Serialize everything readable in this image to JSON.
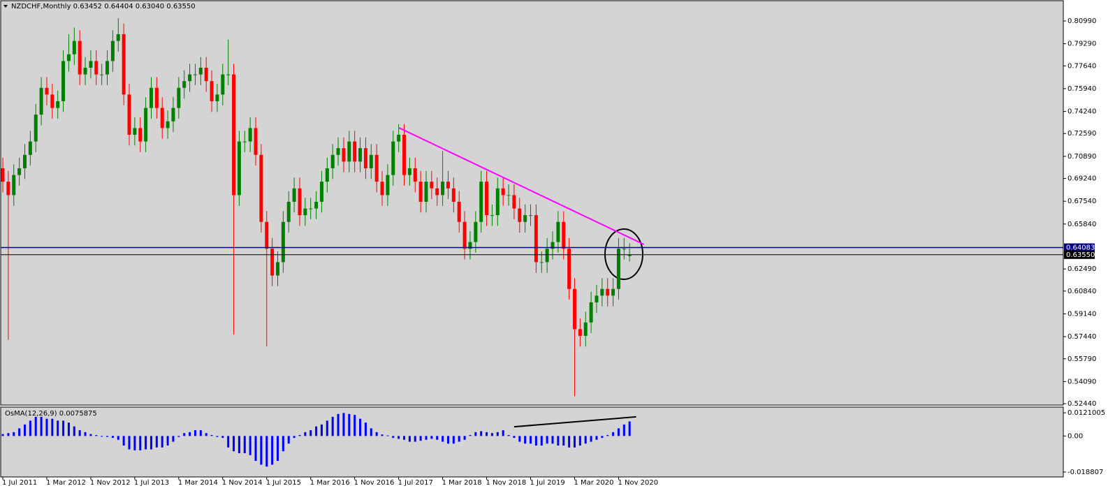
{
  "chart_data": [
    {
      "type": "candlestick",
      "title": "NZDCHF,Monthly  0.63452 0.64404 0.63040 0.63550",
      "categories": [
        "1 Jul 2011",
        null,
        null,
        null,
        null,
        null,
        null,
        null,
        "1 Mar 2012",
        null,
        null,
        null,
        null,
        null,
        null,
        null,
        "1 Nov 2012",
        null,
        null,
        null,
        null,
        null,
        null,
        null,
        "1 Jul 2013",
        null,
        null,
        null,
        null,
        null,
        null,
        null,
        "1 Mar 2014",
        null,
        null,
        null,
        null,
        null,
        null,
        null,
        "1 Nov 2014",
        null,
        null,
        null,
        null,
        null,
        null,
        null,
        "1 Jul 2015",
        null,
        null,
        null,
        null,
        null,
        null,
        null,
        "1 Mar 2016",
        null,
        null,
        null,
        null,
        null,
        null,
        null,
        "1 Nov 2016",
        null,
        null,
        null,
        null,
        null,
        null,
        null,
        "1 Jul 2017",
        null,
        null,
        null,
        null,
        null,
        null,
        null,
        "1 Mar 2018",
        null,
        null,
        null,
        null,
        null,
        null,
        null,
        "1 Nov 2018",
        null,
        null,
        null,
        null,
        null,
        null,
        null,
        "1 Jul 2019",
        null,
        null,
        null,
        null,
        null,
        null,
        null,
        "1 Mar 2020",
        null,
        null,
        null,
        null,
        null,
        null,
        null,
        "1 Nov 2020",
        null,
        null
      ],
      "open": [
        0.7,
        0.69,
        0.68,
        0.695,
        0.7,
        0.71,
        0.72,
        0.74,
        0.76,
        0.755,
        0.745,
        0.75,
        0.78,
        0.785,
        0.795,
        0.77,
        0.775,
        0.78,
        0.77,
        0.77,
        0.78,
        0.795,
        0.8,
        0.755,
        0.725,
        0.73,
        0.72,
        0.745,
        0.76,
        0.745,
        0.73,
        0.735,
        0.745,
        0.76,
        0.765,
        0.77,
        0.77,
        0.775,
        0.765,
        0.75,
        0.755,
        0.77,
        0.77,
        0.68,
        0.72,
        0.72,
        0.73,
        0.71,
        0.66,
        0.64,
        0.62,
        0.63,
        0.66,
        0.675,
        0.685,
        0.665,
        0.67,
        0.67,
        0.675,
        0.69,
        0.7,
        0.71,
        0.715,
        0.705,
        0.72,
        0.705,
        0.715,
        0.7,
        0.71,
        0.69,
        0.68,
        0.695,
        0.72,
        0.725,
        0.695,
        0.7,
        0.69,
        0.675,
        0.69,
        0.685,
        0.68,
        0.69,
        0.685,
        0.675,
        0.66,
        0.64,
        0.645,
        0.66,
        0.69,
        0.665,
        0.665,
        0.685,
        0.68,
        0.68,
        0.67,
        0.66,
        0.665,
        0.665,
        0.63,
        0.63,
        0.64,
        0.645,
        0.66,
        0.64,
        0.61,
        0.58,
        0.575,
        0.585,
        0.6,
        0.605,
        0.61,
        0.605,
        0.61,
        0.64,
        0.63452
      ],
      "high": [
        0.708,
        0.698,
        0.703,
        0.708,
        0.718,
        0.728,
        0.748,
        0.768,
        0.768,
        0.763,
        0.758,
        0.788,
        0.8,
        0.805,
        0.803,
        0.783,
        0.788,
        0.788,
        0.778,
        0.788,
        0.803,
        0.812,
        0.808,
        0.763,
        0.738,
        0.738,
        0.753,
        0.768,
        0.768,
        0.753,
        0.743,
        0.753,
        0.768,
        0.773,
        0.778,
        0.778,
        0.783,
        0.783,
        0.773,
        0.763,
        0.778,
        0.796,
        0.778,
        0.728,
        0.728,
        0.738,
        0.738,
        0.718,
        0.668,
        0.648,
        0.638,
        0.668,
        0.683,
        0.693,
        0.693,
        0.678,
        0.678,
        0.683,
        0.698,
        0.708,
        0.718,
        0.723,
        0.723,
        0.728,
        0.728,
        0.723,
        0.723,
        0.718,
        0.718,
        0.698,
        0.703,
        0.728,
        0.733,
        0.733,
        0.708,
        0.708,
        0.698,
        0.698,
        0.698,
        0.693,
        0.713,
        0.698,
        0.693,
        0.683,
        0.668,
        0.653,
        0.668,
        0.698,
        0.698,
        0.673,
        0.693,
        0.693,
        0.688,
        0.688,
        0.678,
        0.673,
        0.673,
        0.673,
        0.638,
        0.648,
        0.653,
        0.668,
        0.668,
        0.648,
        0.618,
        0.588,
        0.593,
        0.608,
        0.613,
        0.618,
        0.618,
        0.618,
        0.648,
        0.648,
        0.64404
      ],
      "low": [
        0.682,
        0.572,
        0.672,
        0.687,
        0.692,
        0.702,
        0.712,
        0.732,
        0.747,
        0.737,
        0.737,
        0.742,
        0.772,
        0.777,
        0.762,
        0.762,
        0.767,
        0.762,
        0.762,
        0.762,
        0.772,
        0.787,
        0.747,
        0.717,
        0.717,
        0.712,
        0.712,
        0.737,
        0.737,
        0.722,
        0.722,
        0.727,
        0.737,
        0.752,
        0.757,
        0.762,
        0.762,
        0.757,
        0.742,
        0.742,
        0.747,
        0.762,
        0.576,
        0.672,
        0.712,
        0.712,
        0.702,
        0.652,
        0.567,
        0.612,
        0.612,
        0.622,
        0.652,
        0.667,
        0.657,
        0.657,
        0.662,
        0.662,
        0.667,
        0.682,
        0.692,
        0.702,
        0.697,
        0.697,
        0.697,
        0.697,
        0.692,
        0.692,
        0.682,
        0.672,
        0.672,
        0.687,
        0.712,
        0.687,
        0.687,
        0.682,
        0.667,
        0.667,
        0.677,
        0.672,
        0.672,
        0.677,
        0.667,
        0.652,
        0.632,
        0.632,
        0.637,
        0.652,
        0.657,
        0.657,
        0.657,
        0.672,
        0.672,
        0.662,
        0.652,
        0.652,
        0.657,
        0.622,
        0.622,
        0.622,
        0.632,
        0.637,
        0.632,
        0.602,
        0.53,
        0.567,
        0.567,
        0.577,
        0.592,
        0.597,
        0.597,
        0.597,
        0.602,
        0.632,
        0.6304
      ],
      "close": [
        0.69,
        0.68,
        0.695,
        0.7,
        0.71,
        0.72,
        0.74,
        0.76,
        0.755,
        0.745,
        0.75,
        0.78,
        0.785,
        0.795,
        0.77,
        0.775,
        0.78,
        0.77,
        0.77,
        0.78,
        0.795,
        0.8,
        0.755,
        0.725,
        0.73,
        0.72,
        0.745,
        0.76,
        0.745,
        0.73,
        0.735,
        0.745,
        0.76,
        0.765,
        0.77,
        0.77,
        0.775,
        0.765,
        0.75,
        0.755,
        0.77,
        0.77,
        0.68,
        0.72,
        0.72,
        0.73,
        0.71,
        0.66,
        0.64,
        0.62,
        0.63,
        0.66,
        0.675,
        0.685,
        0.665,
        0.67,
        0.67,
        0.675,
        0.69,
        0.7,
        0.71,
        0.715,
        0.705,
        0.72,
        0.705,
        0.715,
        0.7,
        0.71,
        0.69,
        0.68,
        0.695,
        0.72,
        0.725,
        0.695,
        0.7,
        0.69,
        0.675,
        0.69,
        0.685,
        0.68,
        0.69,
        0.685,
        0.675,
        0.66,
        0.64,
        0.645,
        0.66,
        0.69,
        0.665,
        0.665,
        0.685,
        0.68,
        0.68,
        0.67,
        0.66,
        0.665,
        0.665,
        0.63,
        0.63,
        0.64,
        0.645,
        0.66,
        0.64,
        0.61,
        0.58,
        0.575,
        0.585,
        0.6,
        0.605,
        0.61,
        0.605,
        0.61,
        0.64,
        0.64,
        0.6355
      ],
      "up_color": "#008000",
      "down_color": "#ff0000",
      "ylim": [
        0.5234,
        0.825
      ],
      "yticks": [
        {
          "value": 0.8099,
          "label": "0.80990"
        },
        {
          "value": 0.7929,
          "label": "0.79290"
        },
        {
          "value": 0.7764,
          "label": "0.77640"
        },
        {
          "value": 0.7594,
          "label": "0.75940"
        },
        {
          "value": 0.7424,
          "label": "0.74240"
        },
        {
          "value": 0.7259,
          "label": "0.72590"
        },
        {
          "value": 0.7089,
          "label": "0.70890"
        },
        {
          "value": 0.6924,
          "label": "0.69240"
        },
        {
          "value": 0.6754,
          "label": "0.67540"
        },
        {
          "value": 0.6584,
          "label": "0.65840"
        },
        {
          "value": 0.6249,
          "label": "0.62490"
        },
        {
          "value": 0.6084,
          "label": "0.60840"
        },
        {
          "value": 0.5914,
          "label": "0.59140"
        },
        {
          "value": 0.5744,
          "label": "0.57440"
        },
        {
          "value": 0.5579,
          "label": "0.55790"
        },
        {
          "value": 0.5409,
          "label": "0.54090"
        },
        {
          "value": 0.5244,
          "label": "0.52440"
        }
      ],
      "hlines": [
        {
          "value": 0.64083,
          "label": "0.64083",
          "color": "#000080"
        },
        {
          "value": 0.6355,
          "label": "0.63550",
          "color": "#000000"
        }
      ],
      "trendline": {
        "color": "#ff00ff",
        "x": [
          72,
          116.6
        ],
        "values": [
          0.7303,
          0.6432
        ]
      }
    },
    {
      "type": "bar",
      "title": "OsMA(12,26,9) 0.0075875",
      "values": [
        0.001,
        0.0015,
        0.002,
        0.004,
        0.006,
        0.008,
        0.01,
        0.01,
        0.009,
        0.009,
        0.008,
        0.008,
        0.007,
        0.005,
        0.003,
        0.002,
        0.001,
        0.0005,
        0.0,
        -0.0005,
        -0.001,
        -0.002,
        -0.005,
        -0.007,
        -0.0075,
        -0.0075,
        -0.007,
        -0.007,
        -0.006,
        -0.006,
        -0.005,
        -0.003,
        -0.0005,
        0.0015,
        0.002,
        0.003,
        0.003,
        0.0015,
        0.0005,
        -0.0005,
        -0.001,
        -0.006,
        -0.008,
        -0.009,
        -0.009,
        -0.01,
        -0.013,
        -0.015,
        -0.016,
        -0.015,
        -0.013,
        -0.008,
        -0.004,
        -0.001,
        0.0005,
        0.002,
        0.003,
        0.005,
        0.006,
        0.008,
        0.01,
        0.0115,
        0.012,
        0.0115,
        0.011,
        0.009,
        0.007,
        0.004,
        0.002,
        0.0008,
        0.0003,
        -0.001,
        -0.0015,
        -0.002,
        -0.003,
        -0.003,
        -0.0025,
        -0.002,
        -0.0015,
        -0.002,
        -0.003,
        -0.004,
        -0.004,
        -0.003,
        -0.002,
        0.0005,
        0.002,
        0.0025,
        0.002,
        0.0015,
        0.002,
        0.003,
        0.0005,
        -0.001,
        -0.003,
        -0.004,
        -0.004,
        -0.005,
        -0.005,
        -0.004,
        -0.004,
        -0.005,
        -0.005,
        -0.006,
        -0.006,
        -0.005,
        -0.004,
        -0.003,
        -0.002,
        -0.001,
        0.0005,
        0.002,
        0.004,
        0.006,
        0.0075875
      ],
      "color": "#0000ff",
      "ylim": [
        -0.0214,
        0.0147
      ],
      "yticks": [
        0.0121005,
        {
          "value": 0,
          "label": "0.00"
        },
        -0.018807
      ],
      "trendline": {
        "color": "#000000",
        "x": [
          93,
          115.2
        ],
        "values": [
          0.0048,
          0.01
        ]
      }
    }
  ]
}
